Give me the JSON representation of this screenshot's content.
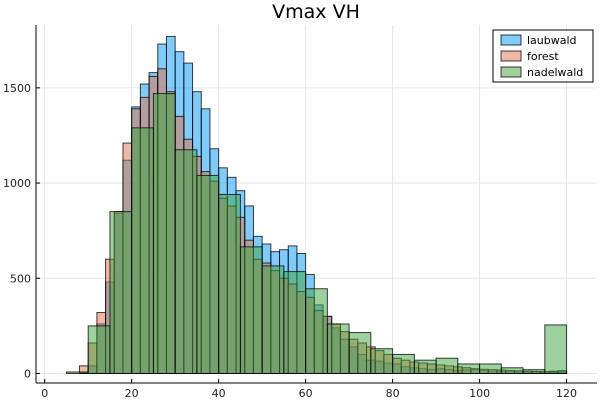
{
  "chart_data": {
    "type": "histogram",
    "title": "Vmax VH",
    "xlabel": "",
    "ylabel": "",
    "xlim": [
      -2,
      127
    ],
    "ylim": [
      -50,
      1830
    ],
    "x_ticks": [
      0,
      20,
      40,
      60,
      80,
      100,
      120
    ],
    "y_ticks": [
      0,
      500,
      1000,
      1500
    ],
    "grid": true,
    "legend_position": "top-right",
    "series": [
      {
        "name": "laubwald",
        "color": "#009af9",
        "opacity": 0.5,
        "bin_width": 2,
        "bins_start": [
          8,
          10,
          12,
          14,
          16,
          18,
          20,
          22,
          24,
          26,
          28,
          30,
          32,
          34,
          36,
          38,
          40,
          42,
          44,
          46,
          48,
          50,
          52,
          54,
          56,
          58,
          60,
          62,
          64,
          66,
          68,
          70,
          72,
          74,
          76,
          78,
          80,
          82,
          84,
          86,
          88,
          90,
          92,
          94,
          96,
          98,
          100,
          102,
          104,
          106,
          108,
          110,
          112,
          114,
          116,
          118
        ],
        "counts": [
          5,
          40,
          260,
          480,
          840,
          1120,
          1400,
          1520,
          1580,
          1730,
          1770,
          1690,
          1630,
          1480,
          1390,
          1180,
          1080,
          1030,
          960,
          880,
          720,
          680,
          640,
          650,
          670,
          630,
          520,
          360,
          300,
          240,
          180,
          140,
          100,
          70,
          65,
          55,
          50,
          35,
          30,
          25,
          20,
          25,
          20,
          15,
          18,
          20,
          15,
          12,
          10,
          12,
          10,
          8,
          10,
          8,
          12,
          15
        ]
      },
      {
        "name": "forest",
        "color": "#e26f46",
        "opacity": 0.5,
        "bin_width": 2,
        "bins_start": [
          8,
          10,
          12,
          14,
          16,
          18,
          20,
          22,
          24,
          26,
          28,
          30,
          32,
          34,
          36,
          38,
          40,
          42,
          44,
          46,
          48,
          50,
          52,
          54,
          56,
          58,
          60,
          62,
          64,
          66,
          68,
          70,
          72,
          74,
          76,
          78,
          80,
          82,
          84,
          86,
          88,
          90,
          92,
          94,
          96,
          98,
          100,
          102,
          104,
          106,
          108,
          110,
          112,
          114,
          116,
          118
        ],
        "counts": [
          40,
          160,
          320,
          600,
          850,
          1210,
          1390,
          1450,
          1560,
          1600,
          1480,
          1350,
          1230,
          1140,
          1060,
          1010,
          920,
          880,
          820,
          700,
          600,
          580,
          540,
          500,
          470,
          430,
          400,
          330,
          300,
          260,
          220,
          180,
          160,
          140,
          120,
          100,
          80,
          70,
          60,
          55,
          50,
          45,
          40,
          35,
          30,
          25,
          22,
          20,
          18,
          15,
          14,
          12,
          10,
          10,
          8,
          8
        ]
      },
      {
        "name": "nadelwald",
        "color": "#3ca33c",
        "opacity": 0.5,
        "bin_width": 5,
        "bins_start": [
          5,
          10,
          15,
          20,
          25,
          30,
          35,
          40,
          45,
          50,
          55,
          60,
          65,
          70,
          75,
          80,
          85,
          90,
          95,
          100,
          105,
          110,
          115
        ],
        "counts": [
          8,
          250,
          850,
          1290,
          1470,
          1175,
          1040,
          940,
          665,
          565,
          535,
          445,
          260,
          215,
          130,
          100,
          70,
          80,
          50,
          50,
          30,
          20,
          255
        ]
      }
    ]
  }
}
